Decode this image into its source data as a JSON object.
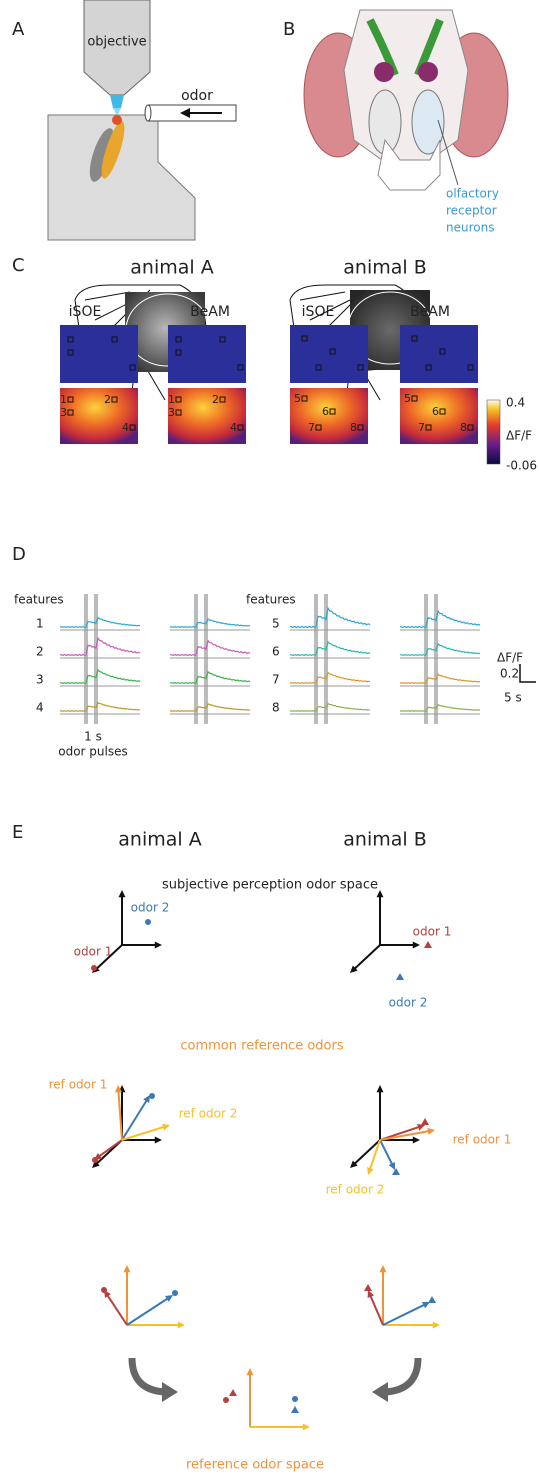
{
  "panel_a": {
    "label": "A",
    "objective": "objective",
    "odor": "odor"
  },
  "panel_b": {
    "label": "B",
    "annotation": [
      "olfactory",
      "receptor",
      "neurons"
    ]
  },
  "panel_c": {
    "label": "C",
    "animals": [
      "animal A",
      "animal B"
    ],
    "conditions": [
      "iSOE",
      "BeAM"
    ],
    "colorbar": {
      "max": "0.4",
      "label": "ΔF/F",
      "min": "-0.06"
    },
    "roi_a": [
      "1",
      "2",
      "3",
      "4"
    ],
    "roi_b": [
      "5",
      "6",
      "7",
      "8"
    ]
  },
  "panel_d": {
    "label": "D",
    "features_heading": "features",
    "features": [
      "1",
      "2",
      "3",
      "4",
      "5",
      "6",
      "7",
      "8"
    ],
    "pulse_duration": "1 s",
    "pulse_label": "odor pulses",
    "scale_label": "ΔF/F",
    "scale_y": "0.2",
    "scale_x": "5 s"
  },
  "panel_e": {
    "label": "E",
    "animals": [
      "animal A",
      "animal B"
    ],
    "subjective_title": "subjective perception odor space",
    "odors": [
      "odor 1",
      "odor 2"
    ],
    "common_title": "common reference odors",
    "ref_odors": [
      "ref odor 1",
      "ref odor 2"
    ],
    "reference_title": "reference odor space"
  }
}
